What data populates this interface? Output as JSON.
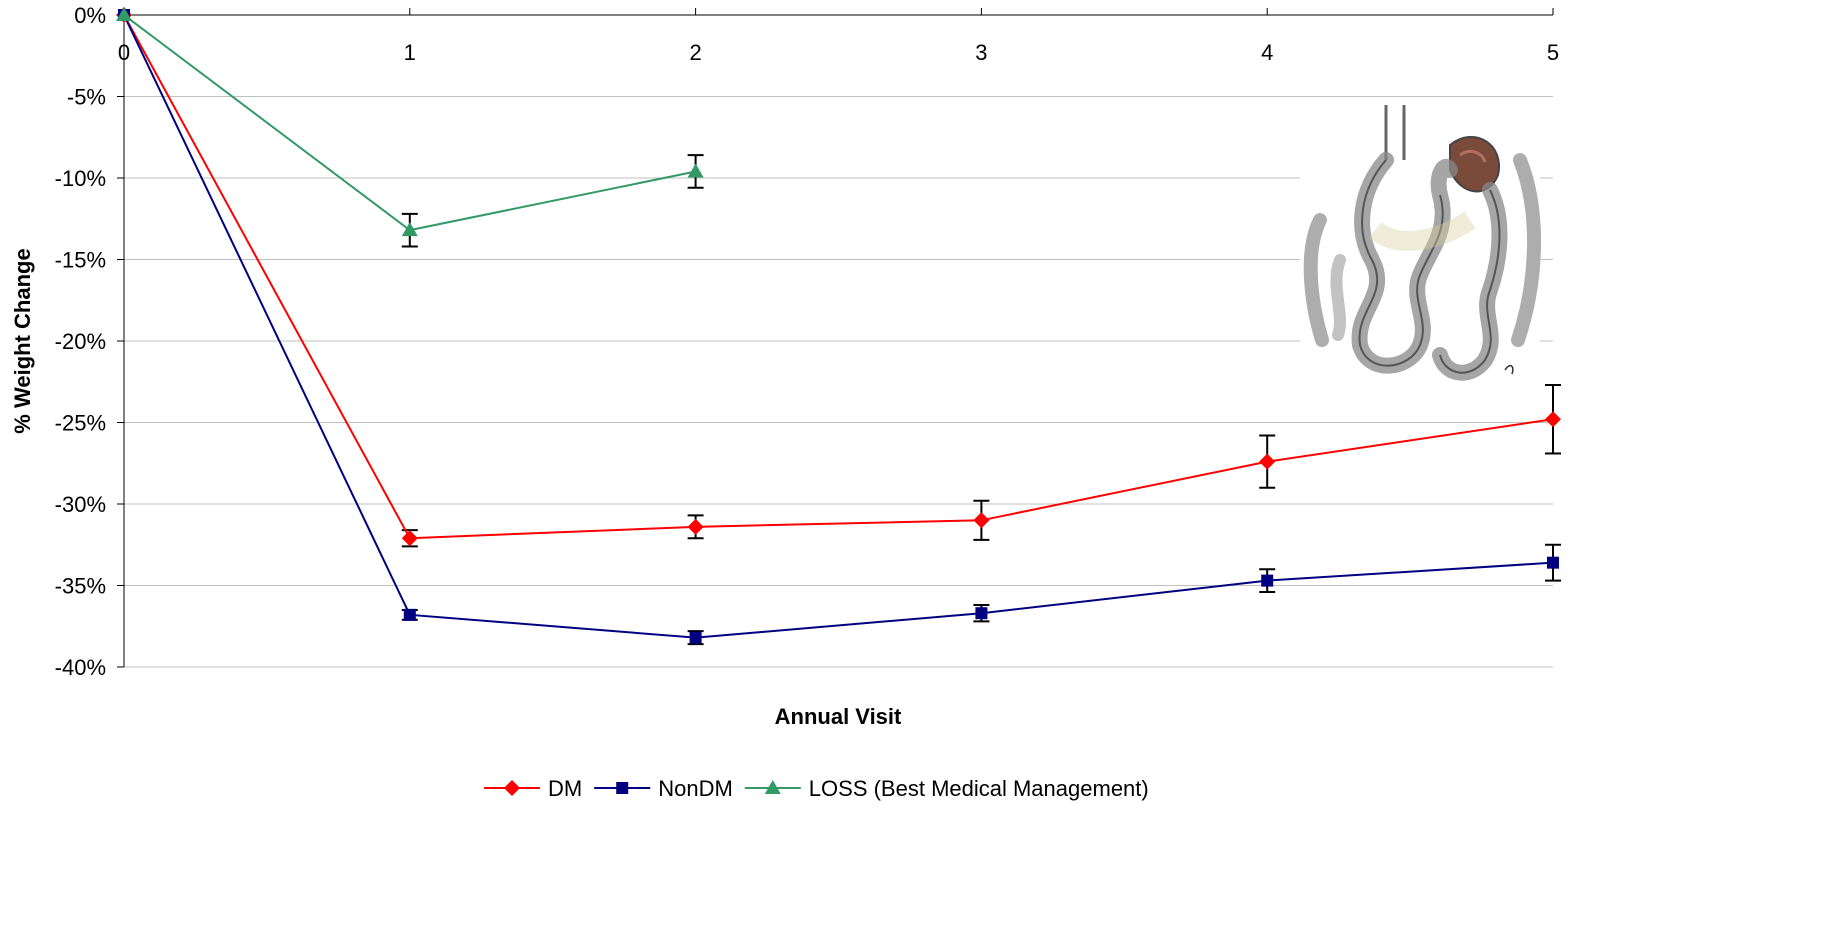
{
  "chart_data": {
    "type": "line",
    "xlabel": "Annual Visit",
    "ylabel": "% Weight Change",
    "x_ticks": [
      "0",
      "1",
      "2",
      "3",
      "4",
      "5"
    ],
    "y_ticks": [
      "0%",
      "-5%",
      "-10%",
      "-15%",
      "-20%",
      "-25%",
      "-30%",
      "-35%",
      "-40%"
    ],
    "xlim": [
      0,
      5
    ],
    "ylim": [
      -40,
      0
    ],
    "grid": "horizontal",
    "legend_position": "bottom",
    "series": [
      {
        "name": "DM",
        "color": "#ff0000",
        "marker": "diamond",
        "x": [
          0,
          1,
          2,
          3,
          4,
          5
        ],
        "values": [
          0,
          -32.1,
          -31.4,
          -31.0,
          -27.4,
          -24.8
        ],
        "error": [
          0,
          0.5,
          0.7,
          1.2,
          1.6,
          2.1
        ]
      },
      {
        "name": "NonDM",
        "color": "#000080",
        "marker": "square",
        "x": [
          0,
          1,
          2,
          3,
          4,
          5
        ],
        "values": [
          0,
          -36.8,
          -38.2,
          -36.7,
          -34.7,
          -33.6
        ],
        "error": [
          0,
          0.3,
          0.4,
          0.5,
          0.7,
          1.1
        ]
      },
      {
        "name": "LOSS (Best Medical Management)",
        "color": "#339966",
        "marker": "triangle",
        "x": [
          0,
          1,
          2
        ],
        "values": [
          0,
          -13.2,
          -9.6
        ],
        "error": [
          0,
          1.0,
          1.0
        ]
      }
    ]
  },
  "illustration": {
    "name": "surgical-anatomy-sketch"
  }
}
